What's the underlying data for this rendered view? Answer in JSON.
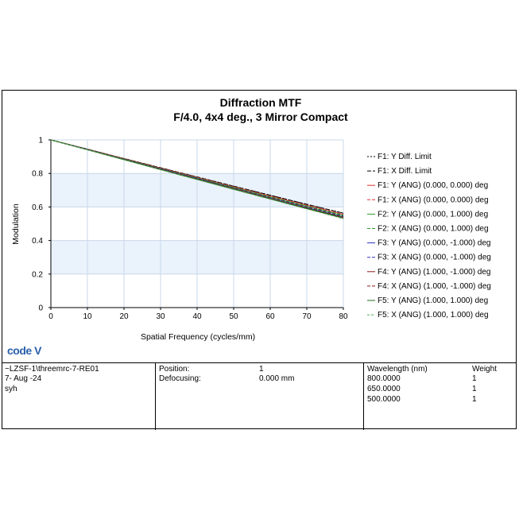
{
  "chart_data": {
    "type": "line",
    "title": "Diffraction MTF",
    "subtitle": "F/4.0, 4x4 deg., 3 Mirror Compact",
    "xlabel": "Spatial Frequency (cycles/mm)",
    "ylabel": "Modulation",
    "xlim": [
      0,
      80
    ],
    "ylim": [
      0,
      1
    ],
    "xticks": [
      "0",
      "10",
      "20",
      "30",
      "40",
      "50",
      "60",
      "70",
      "80"
    ],
    "yticks": [
      "0",
      "0.2",
      "0.4",
      "0.6",
      "0.8",
      "1"
    ],
    "grid": true,
    "legend_position": "right",
    "x": [
      0,
      10,
      20,
      30,
      40,
      50,
      60,
      70,
      80
    ],
    "series": [
      {
        "name": "F1: Y Diff. Limit",
        "color": "#000000",
        "dash": "2,2",
        "values": [
          1.0,
          0.945,
          0.889,
          0.834,
          0.779,
          0.724,
          0.67,
          0.616,
          0.563
        ]
      },
      {
        "name": "F1: X Diff. Limit",
        "color": "#000000",
        "dash": "5,2",
        "values": [
          1.0,
          0.945,
          0.889,
          0.834,
          0.779,
          0.724,
          0.67,
          0.616,
          0.563
        ]
      },
      {
        "name": "F1: Y (ANG) (0.000, 0.000) deg",
        "color": "#e03030",
        "dash": "",
        "values": [
          1.0,
          0.944,
          0.888,
          0.832,
          0.776,
          0.72,
          0.665,
          0.61,
          0.556
        ]
      },
      {
        "name": "F1: X (ANG) (0.000, 0.000) deg",
        "color": "#e03030",
        "dash": "4,2",
        "values": [
          1.0,
          0.944,
          0.888,
          0.832,
          0.776,
          0.72,
          0.665,
          0.61,
          0.556
        ]
      },
      {
        "name": "F2: Y (ANG) (0.000, 1.000) deg",
        "color": "#2e9a2e",
        "dash": "",
        "values": [
          1.0,
          0.943,
          0.886,
          0.829,
          0.772,
          0.715,
          0.659,
          0.603,
          0.548
        ]
      },
      {
        "name": "F2: X (ANG) (0.000, 1.000) deg",
        "color": "#2e9a2e",
        "dash": "4,2",
        "values": [
          1.0,
          0.943,
          0.887,
          0.83,
          0.774,
          0.717,
          0.661,
          0.606,
          0.551
        ]
      },
      {
        "name": "F3: Y (ANG) (0.000, -1.000) deg",
        "color": "#3030c0",
        "dash": "",
        "values": [
          1.0,
          0.942,
          0.884,
          0.826,
          0.768,
          0.71,
          0.653,
          0.596,
          0.54
        ]
      },
      {
        "name": "F3: X (ANG) (0.000, -1.000) deg",
        "color": "#3030c0",
        "dash": "4,2",
        "values": [
          1.0,
          0.943,
          0.885,
          0.828,
          0.771,
          0.713,
          0.656,
          0.6,
          0.545
        ]
      },
      {
        "name": "F4: Y (ANG) (1.000, -1.000) deg",
        "color": "#8b1a1a",
        "dash": "",
        "values": [
          1.0,
          0.941,
          0.882,
          0.823,
          0.764,
          0.706,
          0.648,
          0.59,
          0.533
        ]
      },
      {
        "name": "F4: X (ANG) (1.000, -1.000) deg",
        "color": "#8b1a1a",
        "dash": "4,2",
        "values": [
          1.0,
          0.942,
          0.884,
          0.826,
          0.768,
          0.711,
          0.654,
          0.597,
          0.541
        ]
      },
      {
        "name": "F5: Y (ANG) (1.000, 1.000) deg",
        "color": "#1e6e1e",
        "dash": "",
        "values": [
          1.0,
          0.941,
          0.882,
          0.823,
          0.765,
          0.707,
          0.649,
          0.592,
          0.536
        ]
      },
      {
        "name": "F5: X (ANG) (1.000, 1.000) deg",
        "color": "#4caf50",
        "dash": "3,2",
        "values": [
          1.0,
          0.941,
          0.881,
          0.822,
          0.763,
          0.704,
          0.646,
          0.588,
          0.53
        ]
      }
    ]
  },
  "logo_text": "code V",
  "info": {
    "file": "~LZSF-1\\threemrc-7-RE01",
    "date": " 7- Aug -24",
    "user": "syh",
    "position_label": "Position:",
    "position_value": "1",
    "defocusing_label": "Defocusing:",
    "defocusing_value": "0.000 mm",
    "wavelength_header": "Wavelength (nm)",
    "weight_header": "Weight",
    "wavelengths": [
      {
        "wl": "800.0000",
        "weight": "1"
      },
      {
        "wl": "650.0000",
        "weight": "1"
      },
      {
        "wl": "500.0000",
        "weight": "1"
      }
    ]
  }
}
